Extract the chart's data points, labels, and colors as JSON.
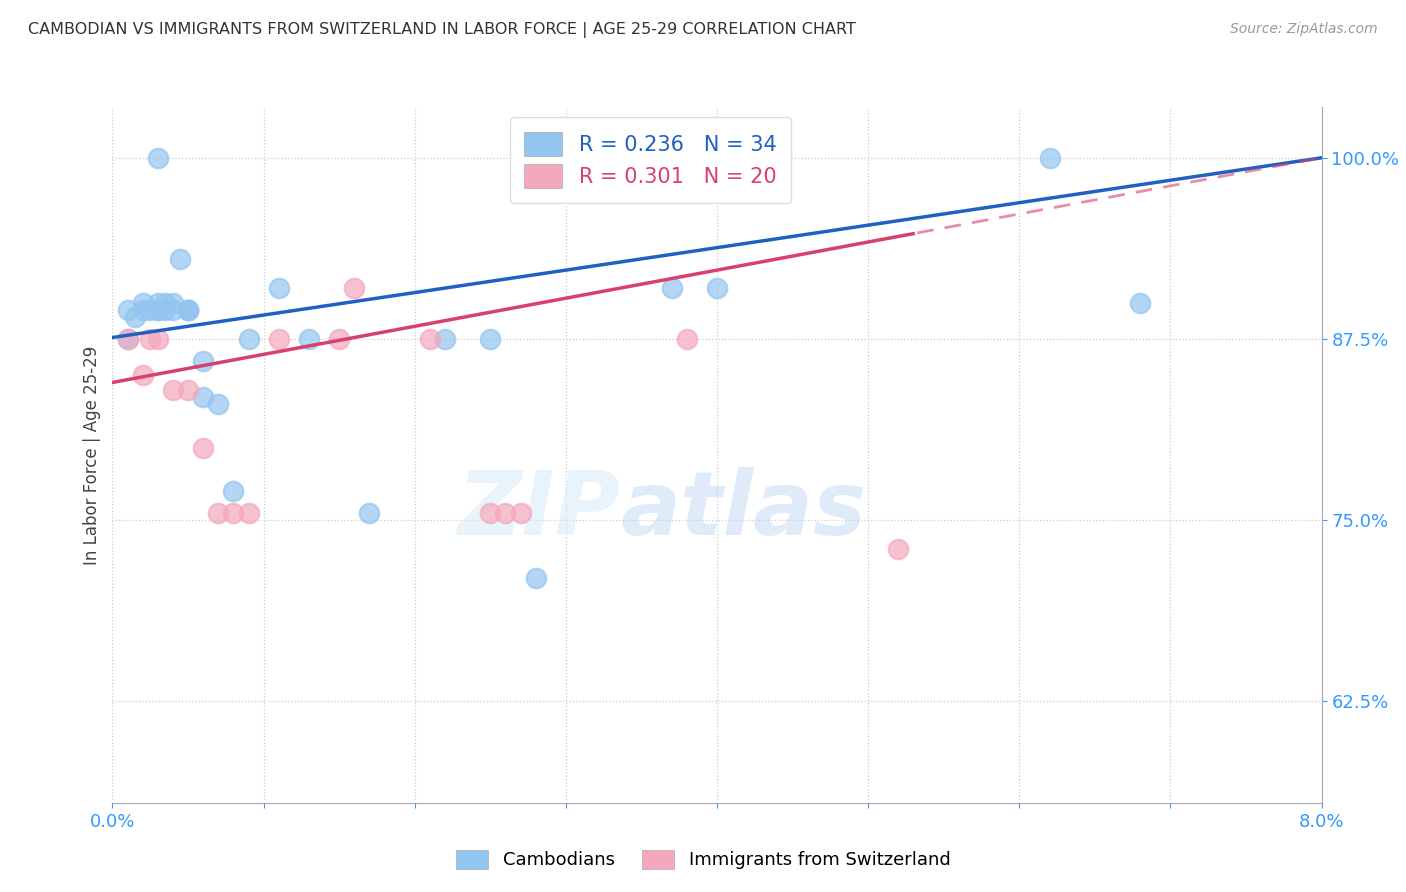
{
  "title": "CAMBODIAN VS IMMIGRANTS FROM SWITZERLAND IN LABOR FORCE | AGE 25-29 CORRELATION CHART",
  "source": "Source: ZipAtlas.com",
  "ylabel": "In Labor Force | Age 25-29",
  "xlim": [
    0.0,
    0.08
  ],
  "ylim": [
    0.555,
    1.035
  ],
  "yticks": [
    0.625,
    0.75,
    0.875,
    1.0
  ],
  "ytick_labels": [
    "62.5%",
    "75.0%",
    "87.5%",
    "100.0%"
  ],
  "xticks": [
    0.0,
    0.01,
    0.02,
    0.03,
    0.04,
    0.05,
    0.06,
    0.07,
    0.08
  ],
  "xtick_labels": [
    "0.0%",
    "",
    "",
    "",
    "",
    "",
    "",
    "",
    "8.0%"
  ],
  "cambodian_x": [
    0.001,
    0.001,
    0.0015,
    0.002,
    0.002,
    0.0025,
    0.003,
    0.003,
    0.003,
    0.003,
    0.0035,
    0.0035,
    0.004,
    0.004,
    0.0045,
    0.005,
    0.005,
    0.005,
    0.006,
    0.006,
    0.007,
    0.008,
    0.009,
    0.011,
    0.013,
    0.017,
    0.022,
    0.025,
    0.028,
    0.037,
    0.04,
    0.062,
    0.068
  ],
  "cambodian_y": [
    0.895,
    0.875,
    0.89,
    0.895,
    0.9,
    0.895,
    0.895,
    0.9,
    0.895,
    1.0,
    0.895,
    0.9,
    0.895,
    0.9,
    0.93,
    0.895,
    0.895,
    0.895,
    0.835,
    0.86,
    0.83,
    0.77,
    0.875,
    0.91,
    0.875,
    0.755,
    0.875,
    0.875,
    0.71,
    0.91,
    0.91,
    1.0,
    0.9
  ],
  "swiss_x": [
    0.001,
    0.002,
    0.0025,
    0.003,
    0.004,
    0.005,
    0.006,
    0.007,
    0.008,
    0.009,
    0.011,
    0.015,
    0.016,
    0.021,
    0.025,
    0.026,
    0.027,
    0.038,
    0.052
  ],
  "swiss_y": [
    0.875,
    0.85,
    0.875,
    0.875,
    0.84,
    0.84,
    0.8,
    0.755,
    0.755,
    0.755,
    0.875,
    0.875,
    0.91,
    0.875,
    0.755,
    0.755,
    0.755,
    0.875,
    0.73
  ],
  "cambodian_R": 0.236,
  "cambodian_N": 34,
  "swiss_R": 0.301,
  "swiss_N": 20,
  "cambodian_color": "#92C5F0",
  "swiss_color": "#F4A8BC",
  "cambodian_line_color": "#2060C0",
  "swiss_line_color": "#D84070",
  "background_color": "#ffffff",
  "grid_color": "#cccccc",
  "title_color": "#333333",
  "axis_color": "#3399FF",
  "watermark_zip": "ZIP",
  "watermark_atlas": "atlas"
}
